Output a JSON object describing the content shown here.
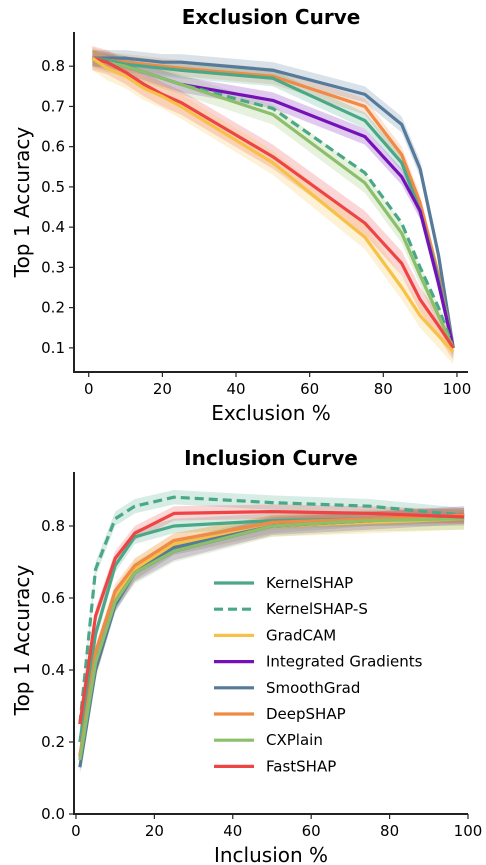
{
  "chart_data": [
    {
      "type": "line",
      "title": "Exclusion Curve",
      "xlabel": "Exclusion %",
      "ylabel": "Top 1 Accuracy",
      "xlim": [
        -4,
        103
      ],
      "ylim": [
        0.04,
        0.885
      ],
      "xticks": [
        0,
        20,
        40,
        60,
        80,
        100
      ],
      "xtick_labels": [
        "0",
        "20",
        "40",
        "60",
        "80",
        "100"
      ],
      "yticks": [
        0.1,
        0.2,
        0.3,
        0.4,
        0.5,
        0.6,
        0.7,
        0.8
      ],
      "ytick_labels": [
        "0.1",
        "0.2",
        "0.3",
        "0.4",
        "0.5",
        "0.6",
        "0.7",
        "0.8"
      ],
      "grid": false,
      "series": [
        {
          "name": "SmoothGrad",
          "color": "#557a9a",
          "dash": false,
          "x": [
            1,
            5,
            10,
            15,
            20,
            25,
            50,
            75,
            85,
            90,
            95,
            99
          ],
          "y": [
            0.82,
            0.82,
            0.82,
            0.815,
            0.81,
            0.81,
            0.79,
            0.73,
            0.655,
            0.545,
            0.33,
            0.1
          ],
          "band": 0.02
        },
        {
          "name": "DeepSHAP",
          "color": "#f08a46",
          "dash": false,
          "x": [
            1,
            5,
            10,
            15,
            20,
            25,
            50,
            75,
            85,
            90,
            95,
            99
          ],
          "y": [
            0.82,
            0.815,
            0.81,
            0.805,
            0.8,
            0.795,
            0.775,
            0.7,
            0.58,
            0.46,
            0.28,
            0.1
          ],
          "band": 0.02
        },
        {
          "name": "KernelSHAP",
          "color": "#4aa887",
          "dash": false,
          "x": [
            1,
            5,
            10,
            15,
            20,
            25,
            50,
            75,
            85,
            90,
            95,
            99
          ],
          "y": [
            0.82,
            0.815,
            0.805,
            0.8,
            0.795,
            0.79,
            0.77,
            0.665,
            0.56,
            0.44,
            0.27,
            0.1
          ],
          "band": 0.02
        },
        {
          "name": "Integrated Gradients",
          "color": "#7412b8",
          "dash": false,
          "x": [
            1,
            5,
            10,
            15,
            20,
            25,
            50,
            75,
            85,
            90,
            95,
            99
          ],
          "y": [
            0.82,
            0.81,
            0.8,
            0.785,
            0.77,
            0.755,
            0.715,
            0.625,
            0.525,
            0.44,
            0.26,
            0.1
          ],
          "band": 0.02
        },
        {
          "name": "KernelSHAP-S",
          "color": "#4aa887",
          "dash": true,
          "x": [
            1,
            5,
            10,
            15,
            20,
            25,
            50,
            75,
            85,
            90,
            95,
            99
          ],
          "y": [
            0.82,
            0.81,
            0.8,
            0.785,
            0.77,
            0.755,
            0.695,
            0.535,
            0.41,
            0.3,
            0.2,
            0.1
          ],
          "band": 0.0
        },
        {
          "name": "CXPlain",
          "color": "#8cbf6a",
          "dash": false,
          "x": [
            1,
            5,
            10,
            15,
            20,
            25,
            50,
            75,
            85,
            90,
            95,
            99
          ],
          "y": [
            0.82,
            0.81,
            0.8,
            0.785,
            0.77,
            0.755,
            0.68,
            0.51,
            0.385,
            0.28,
            0.18,
            0.1
          ],
          "band": 0.025
        },
        {
          "name": "FastSHAP",
          "color": "#ef4444",
          "dash": false,
          "x": [
            1,
            5,
            10,
            15,
            20,
            25,
            50,
            75,
            85,
            90,
            95,
            99
          ],
          "y": [
            0.82,
            0.81,
            0.785,
            0.755,
            0.73,
            0.71,
            0.575,
            0.41,
            0.31,
            0.22,
            0.155,
            0.1
          ],
          "band": 0.03
        },
        {
          "name": "GradCAM",
          "color": "#f6c146",
          "dash": false,
          "x": [
            1,
            5,
            10,
            15,
            20,
            25,
            50,
            75,
            85,
            90,
            95,
            99
          ],
          "y": [
            0.82,
            0.795,
            0.775,
            0.745,
            0.725,
            0.7,
            0.56,
            0.375,
            0.25,
            0.18,
            0.13,
            0.09
          ],
          "band": 0.03
        }
      ]
    },
    {
      "type": "line",
      "title": "Inclusion Curve",
      "xlabel": "Inclusion %",
      "ylabel": "Top 1 Accuracy",
      "xlim": [
        -0.5,
        100
      ],
      "ylim": [
        0,
        0.95
      ],
      "xticks": [
        0,
        20,
        40,
        60,
        80,
        100
      ],
      "xtick_labels": [
        "0",
        "20",
        "40",
        "60",
        "80",
        "100"
      ],
      "yticks": [
        0.0,
        0.2,
        0.4,
        0.6,
        0.8
      ],
      "ytick_labels": [
        "0.0",
        "0.2",
        "0.4",
        "0.6",
        "0.8"
      ],
      "grid": false,
      "legend": "center-right",
      "series": [
        {
          "name": "KernelSHAP",
          "color": "#4aa887",
          "dash": false,
          "x": [
            1,
            5,
            10,
            15,
            25,
            50,
            75,
            99
          ],
          "y": [
            0.2,
            0.5,
            0.69,
            0.77,
            0.8,
            0.815,
            0.82,
            0.82
          ],
          "band": 0.02
        },
        {
          "name": "KernelSHAP-S",
          "color": "#4aa887",
          "dash": true,
          "x": [
            1,
            5,
            10,
            15,
            25,
            50,
            75,
            99
          ],
          "y": [
            0.25,
            0.68,
            0.82,
            0.855,
            0.88,
            0.865,
            0.855,
            0.83
          ],
          "band": 0.02
        },
        {
          "name": "GradCAM",
          "color": "#f6c146",
          "dash": false,
          "x": [
            1,
            5,
            10,
            15,
            25,
            50,
            75,
            99
          ],
          "y": [
            0.16,
            0.4,
            0.6,
            0.68,
            0.75,
            0.8,
            0.81,
            0.82
          ],
          "band": 0.03
        },
        {
          "name": "Integrated Gradients",
          "color": "#7412b8",
          "dash": false,
          "x": [
            1,
            5,
            10,
            15,
            25,
            50,
            75,
            99
          ],
          "y": [
            0.16,
            0.42,
            0.59,
            0.67,
            0.73,
            0.8,
            0.815,
            0.83
          ],
          "band": 0.025
        },
        {
          "name": "SmoothGrad",
          "color": "#557a9a",
          "dash": false,
          "x": [
            1,
            5,
            10,
            15,
            25,
            50,
            75,
            99
          ],
          "y": [
            0.13,
            0.4,
            0.58,
            0.67,
            0.74,
            0.8,
            0.82,
            0.83
          ],
          "band": 0.02
        },
        {
          "name": "DeepSHAP",
          "color": "#f08a46",
          "dash": false,
          "x": [
            1,
            5,
            10,
            15,
            25,
            50,
            75,
            99
          ],
          "y": [
            0.16,
            0.45,
            0.62,
            0.69,
            0.76,
            0.81,
            0.82,
            0.83
          ],
          "band": 0.02
        },
        {
          "name": "CXPlain",
          "color": "#8cbf6a",
          "dash": false,
          "x": [
            1,
            5,
            10,
            15,
            25,
            50,
            75,
            99
          ],
          "y": [
            0.15,
            0.42,
            0.59,
            0.67,
            0.73,
            0.8,
            0.815,
            0.82
          ],
          "band": 0.03
        },
        {
          "name": "FastSHAP",
          "color": "#ef4444",
          "dash": false,
          "x": [
            1,
            5,
            10,
            15,
            25,
            50,
            75,
            99
          ],
          "y": [
            0.25,
            0.55,
            0.71,
            0.78,
            0.835,
            0.84,
            0.835,
            0.825
          ],
          "band": 0.02
        }
      ],
      "legend_order": [
        "KernelSHAP",
        "KernelSHAP-S",
        "GradCAM",
        "Integrated Gradients",
        "SmoothGrad",
        "DeepSHAP",
        "CXPlain",
        "FastSHAP"
      ]
    }
  ]
}
